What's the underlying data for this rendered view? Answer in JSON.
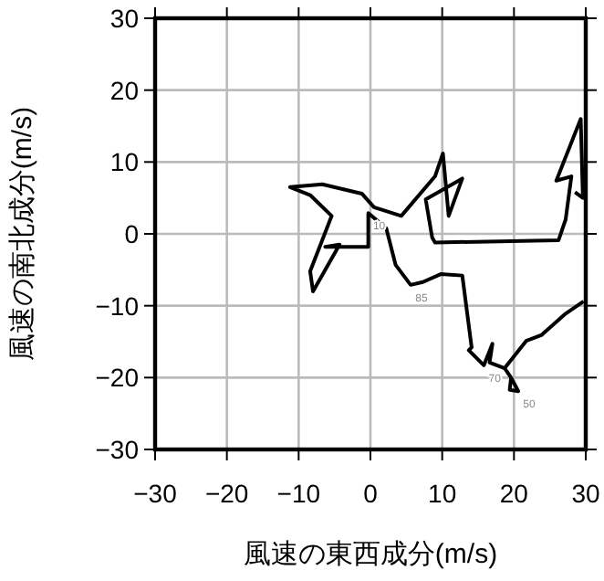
{
  "chart_data": {
    "type": "line",
    "xlabel": "風速の東西成分(m/s)",
    "ylabel": "風速の南北成分(m/s)",
    "xlim": [
      -30,
      30
    ],
    "ylim": [
      -30,
      30
    ],
    "xticks": [
      -30,
      -20,
      -10,
      0,
      10,
      20,
      30
    ],
    "yticks": [
      -30,
      -20,
      -10,
      0,
      10,
      20,
      30
    ],
    "grid": true,
    "marker": "none",
    "line_style": "solid",
    "series": [
      {
        "color": "#000000",
        "x": [
          28.5,
          29.6,
          29.3,
          25.9,
          28.0,
          27.2,
          26.2,
          9.0,
          8.6,
          7.7,
          12.8,
          10.9,
          10.1,
          9.0,
          4.3,
          0.5,
          -1.2,
          -6.7,
          -11.2,
          -8.4,
          -5.4,
          -8.4,
          -8.0,
          -4.3,
          -6.3,
          -0.3,
          -0.3,
          2.2,
          3.5,
          5.6,
          7.3,
          9.8,
          12.8,
          14.1,
          13.7,
          15.8,
          17.0,
          16.6,
          18.7,
          19.6,
          19.4,
          20.6,
          19.6,
          18.7,
          21.7,
          23.8,
          27.2,
          29.7
        ],
        "values": [
          5.8,
          5.0,
          16.0,
          7.4,
          8.0,
          2.0,
          -0.9,
          -1.2,
          -0.5,
          4.8,
          7.7,
          2.5,
          11.2,
          8.0,
          2.5,
          3.7,
          5.6,
          6.9,
          6.5,
          5.4,
          2.5,
          -5.2,
          -8.0,
          -1.5,
          -1.8,
          -1.8,
          2.9,
          0.8,
          -4.3,
          -7.1,
          -6.7,
          -5.6,
          -5.8,
          -15.8,
          -16.2,
          -18.3,
          -15.3,
          -17.9,
          -18.7,
          -20.0,
          -21.7,
          -21.9,
          -20.0,
          -18.7,
          -14.9,
          -14.1,
          -11.1,
          -9.4
        ]
      }
    ],
    "annotations": [
      {
        "text": "10",
        "x": -0.3,
        "y": 2.9
      },
      {
        "text": "85",
        "x": 5.6,
        "y": -7.1
      },
      {
        "text": "70",
        "x": 15.8,
        "y": -18.3
      },
      {
        "text": "50",
        "x": 20.6,
        "y": -21.9
      }
    ]
  }
}
